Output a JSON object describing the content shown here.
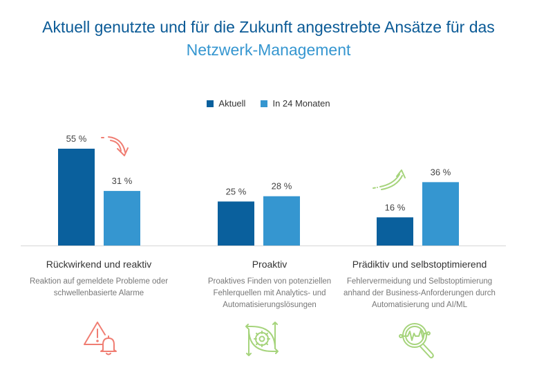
{
  "title": {
    "line1": "Aktuell genutzte und für die Zukunft angestrebte Ansätze für das",
    "line2": "Netzwerk-Management"
  },
  "colors": {
    "title_dark": "#0a5a96",
    "title_light": "#3596d0",
    "aktuell": "#0a609d",
    "in24": "#3596d0",
    "arrow_down": "#f07d72",
    "arrow_up": "#a6d47c",
    "icon_red": "#f07d72",
    "icon_green": "#a6d47c"
  },
  "chart_data": {
    "type": "bar",
    "title": "Aktuell genutzte und für die Zukunft angestrebte Ansätze für das Netzwerk-Management",
    "xlabel": "",
    "ylabel": "",
    "ylim": [
      0,
      60
    ],
    "grid": false,
    "legend_position": "top-center",
    "categories": [
      "Rückwirkend und reaktiv",
      "Proaktiv",
      "Prädiktiv und selbstoptimierend"
    ],
    "series": [
      {
        "name": "Aktuell",
        "values": [
          55,
          25,
          16
        ],
        "labels": [
          "55 %",
          "25 %",
          "16 %"
        ]
      },
      {
        "name": "In 24 Monaten",
        "values": [
          31,
          28,
          36
        ],
        "labels": [
          "31 %",
          "28 %",
          "36 %"
        ]
      }
    ],
    "annotations": [
      {
        "category": "Rückwirkend und reaktiv",
        "type": "trend-arrow",
        "direction": "down"
      },
      {
        "category": "Prädiktiv und selbstoptimierend",
        "type": "trend-arrow",
        "direction": "up"
      }
    ]
  },
  "legend": [
    {
      "label": "Aktuell"
    },
    {
      "label": "In 24 Monaten"
    }
  ],
  "categories": [
    {
      "title": "Rückwirkend und reaktiv",
      "desc": [
        "Reaktion auf gemeldete Probleme oder",
        "schwellenbasierte Alarme"
      ],
      "icon": "warning-bell-icon"
    },
    {
      "title": "Proaktiv",
      "desc": [
        "Proaktives Finden von potenziellen",
        "Fehlerquellen mit Analytics- und",
        "Automatisierungslösungen"
      ],
      "icon": "gear-arrows-icon"
    },
    {
      "title": "Prädiktiv und selbstoptimierend",
      "desc": [
        "Fehlervermeidung und Selbstoptimierung",
        "anhand der Business-Anforderungen durch",
        "Automatisierung und AI/ML"
      ],
      "icon": "magnifier-pulse-icon"
    }
  ]
}
